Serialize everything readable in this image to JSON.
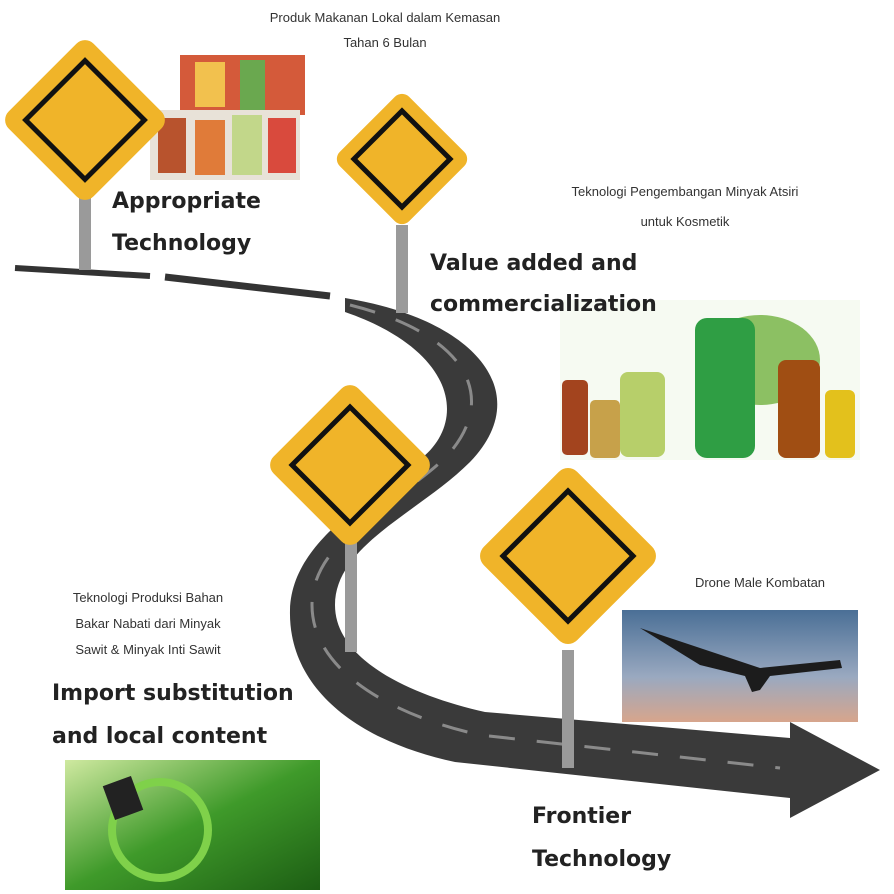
{
  "stages": [
    {
      "title": [
        "Appropriate",
        "Technology"
      ],
      "caption": [
        "Produk Makanan Lokal dalam Kemasan",
        "Tahan 6 Bulan"
      ]
    },
    {
      "title": [
        "Value added and",
        "commercialization"
      ],
      "caption": [
        "Teknologi Pengembangan Minyak Atsiri",
        "untuk Kosmetik"
      ]
    },
    {
      "title": [
        "Import substitution",
        "and local content"
      ],
      "caption": [
        "Teknologi Produksi Bahan",
        "Bakar Nabati dari Minyak",
        "Sawit & Minyak Inti Sawit"
      ]
    },
    {
      "title": [
        "Frontier",
        "Technology"
      ],
      "caption": [
        "Drone Male Kombatan"
      ]
    }
  ]
}
